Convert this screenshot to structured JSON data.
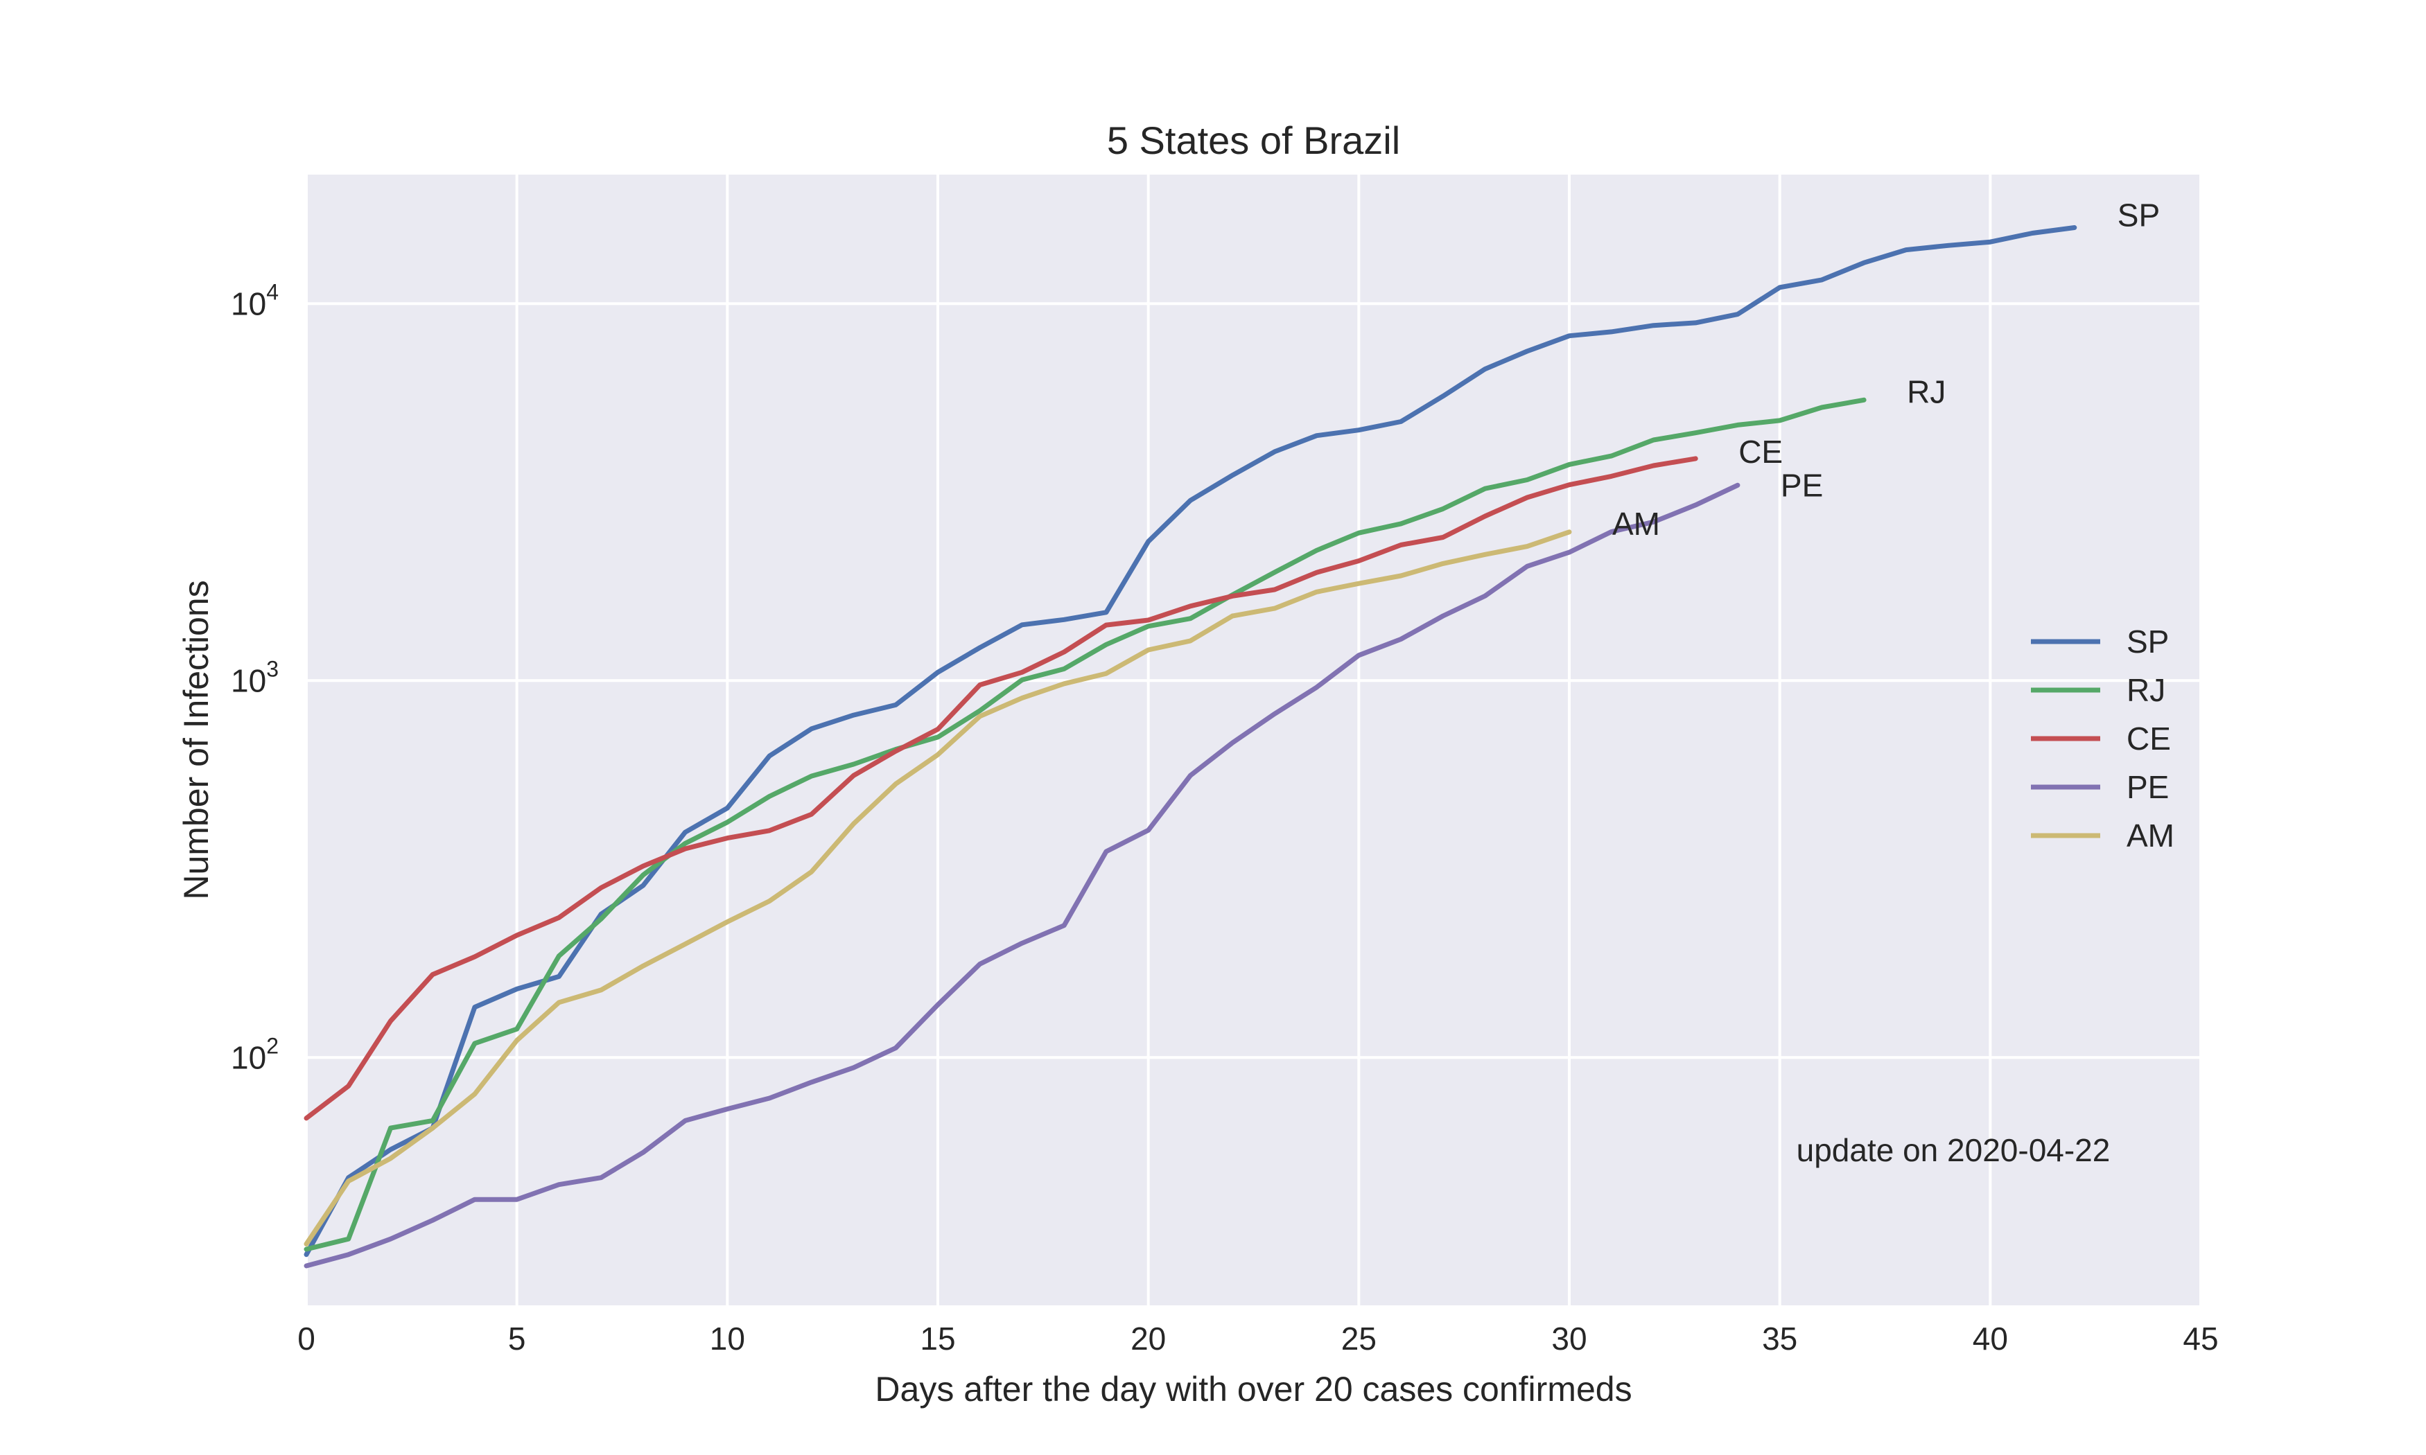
{
  "chart_data": {
    "type": "line",
    "title": "5 States of Brazil",
    "xlabel": "Days after the day with over 20 cases confirmeds",
    "ylabel": "Number of Infections",
    "xlim": [
      0,
      45
    ],
    "ylim": [
      22,
      22000
    ],
    "yscale": "log",
    "grid": true,
    "legend_position": "center-right",
    "annotation": "update on 2020-04-22",
    "x_ticks": [
      0,
      5,
      10,
      15,
      20,
      25,
      30,
      35,
      40,
      45
    ],
    "y_ticks": [
      {
        "value": 100,
        "base": "10",
        "exp": "2"
      },
      {
        "value": 1000,
        "base": "10",
        "exp": "3"
      },
      {
        "value": 10000,
        "base": "10",
        "exp": "4"
      }
    ],
    "colors": {
      "background": "#eaeaf2",
      "grid": "#ffffff"
    },
    "series": [
      {
        "name": "SP",
        "color": "#4c72b0",
        "label": "SP",
        "values": [
          30,
          48,
          57,
          65,
          136,
          152,
          164,
          240,
          286,
          396,
          459,
          631,
          745,
          810,
          862,
          1052,
          1223,
          1406,
          1451,
          1517,
          2339,
          3005,
          3506,
          4048,
          4466,
          4620,
          4866,
          5682,
          6708,
          7480,
          8216,
          8419,
          8755,
          8895,
          9371,
          11043,
          11568,
          12841,
          13894,
          14267,
          14580,
          15385,
          15914
        ]
      },
      {
        "name": "RJ",
        "color": "#55a868",
        "label": "RJ",
        "values": [
          31,
          33,
          65,
          68,
          109,
          119,
          186,
          233,
          305,
          370,
          421,
          493,
          558,
          600,
          657,
          708,
          832,
          1004,
          1074,
          1246,
          1394,
          1461,
          1688,
          1938,
          2216,
          2464,
          2607,
          2855,
          3231,
          3410,
          3743,
          3944,
          4349,
          4543,
          4765,
          4899,
          5306,
          5552
        ]
      },
      {
        "name": "CE",
        "color": "#c44e52",
        "label": "CE",
        "values": [
          69,
          84,
          125,
          166,
          185,
          211,
          235,
          282,
          322,
          358,
          382,
          400,
          442,
          560,
          650,
          743,
          974,
          1052,
          1191,
          1404,
          1447,
          1576,
          1676,
          1743,
          1936,
          2078,
          2290,
          2399,
          2730,
          3060,
          3307,
          3484,
          3718,
          3881
        ]
      },
      {
        "name": "PE",
        "color": "#8172b2",
        "label": "PE",
        "values": [
          28,
          30,
          33,
          37,
          42,
          42,
          46,
          48,
          56,
          68,
          73,
          78,
          86,
          94,
          106,
          138,
          177,
          201,
          224,
          352,
          401,
          560,
          684,
          816,
          960,
          1167,
          1288,
          1484,
          1677,
          2010,
          2190,
          2482,
          2636,
          2922,
          3298
        ]
      },
      {
        "name": "AM",
        "color": "#ccb974",
        "label": "AM",
        "values": [
          32,
          47,
          54,
          65,
          80,
          111,
          140,
          151,
          175,
          200,
          229,
          260,
          311,
          417,
          532,
          636,
          804,
          899,
          981,
          1044,
          1206,
          1275,
          1484,
          1554,
          1719,
          1809,
          1897,
          2044,
          2160,
          2270,
          2479
        ]
      }
    ]
  }
}
